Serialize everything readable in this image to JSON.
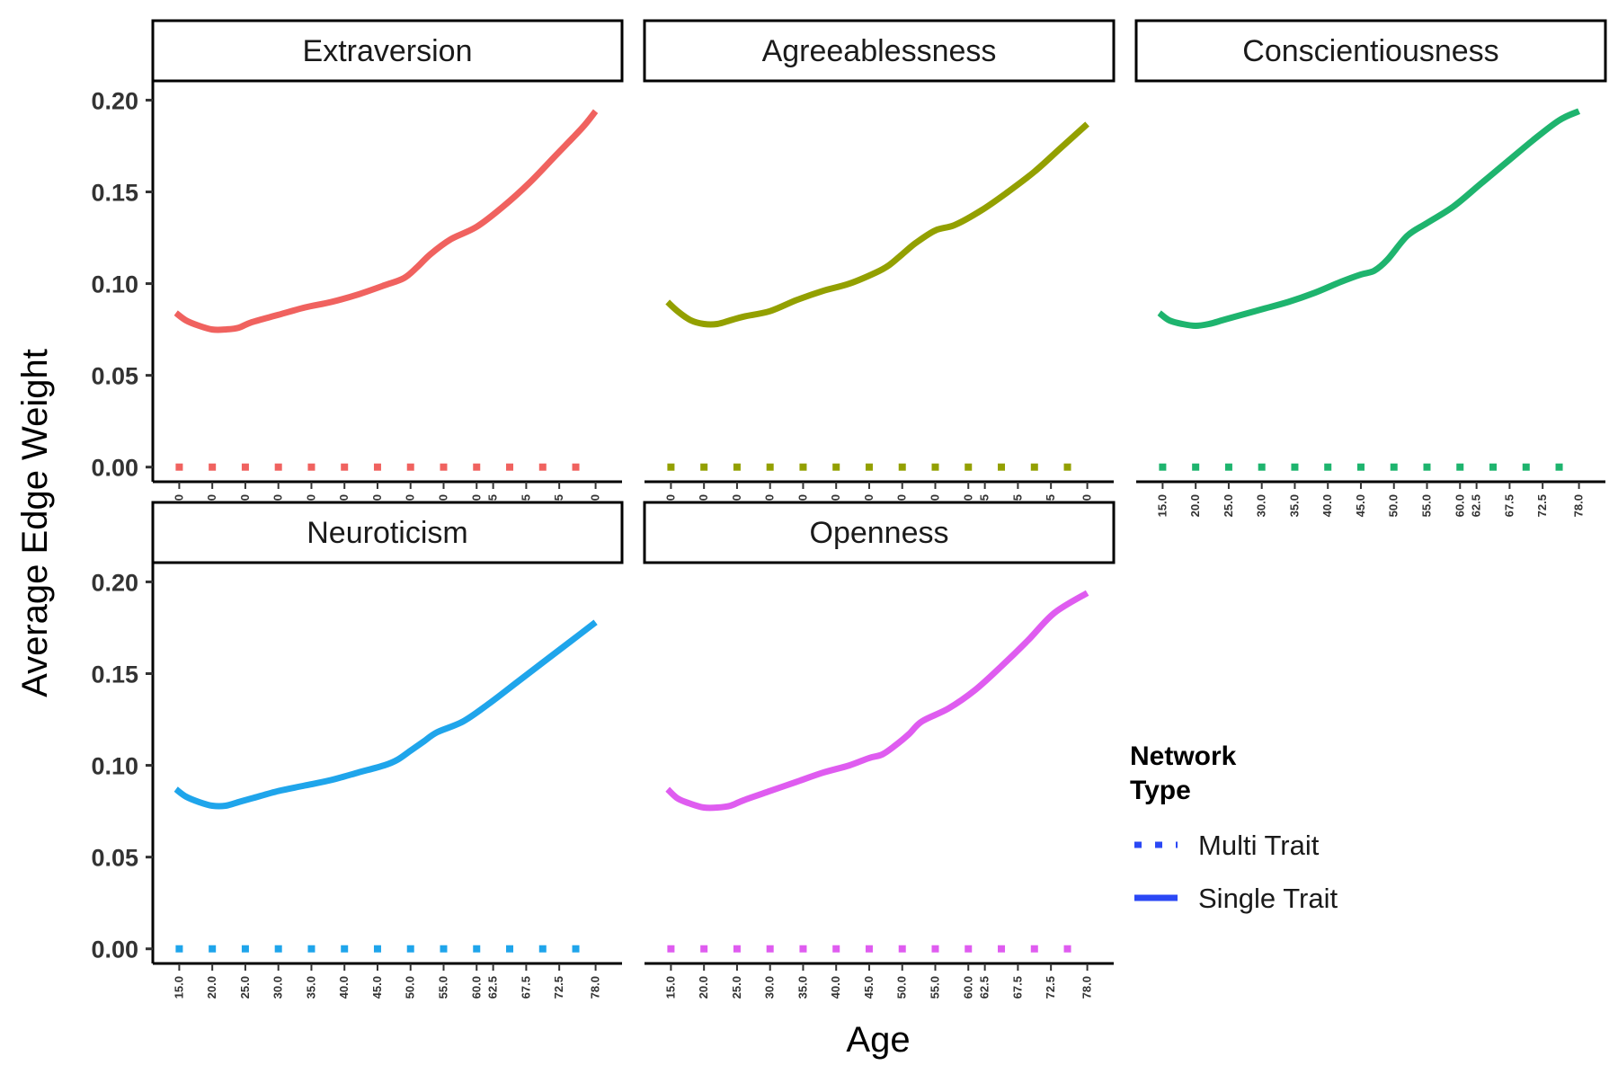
{
  "chart_data": {
    "type": "line",
    "xlabel": "Age",
    "ylabel": "Average Edge Weight",
    "ylim": [
      -0.007,
      0.21
    ],
    "y_ticks": [
      "0.00",
      "0.05",
      "0.10",
      "0.15",
      "0.20"
    ],
    "y_tick_values": [
      0,
      0.05,
      0.1,
      0.15,
      0.2
    ],
    "x_ticks": [
      "15.0",
      "20.0",
      "25.0",
      "30.0",
      "35.0",
      "40.0",
      "45.0",
      "50.0",
      "55.0",
      "60.0",
      "62.5",
      "67.5",
      "72.5",
      "78.0"
    ],
    "x_tick_values": [
      15,
      20,
      25,
      30,
      35,
      40,
      45,
      50,
      55,
      60,
      62.5,
      67.5,
      72.5,
      78
    ],
    "xlim": [
      11,
      82
    ],
    "legend": {
      "title_lines": [
        "Network",
        "Type"
      ],
      "position": "right",
      "entries": [
        {
          "label": "Multi Trait",
          "style": "dotted"
        },
        {
          "label": "Single Trait",
          "style": "solid"
        }
      ]
    },
    "facets": [
      {
        "label": "Extraversion",
        "color": "#F0625F",
        "single_trait": {
          "x": [
            14.5,
            16,
            18,
            20,
            22,
            24,
            26,
            30,
            34,
            38,
            42,
            46,
            49,
            51,
            53,
            56,
            60,
            64,
            68,
            72,
            76,
            78
          ],
          "y": [
            0.084,
            0.08,
            0.077,
            0.075,
            0.075,
            0.076,
            0.079,
            0.083,
            0.087,
            0.09,
            0.094,
            0.099,
            0.103,
            0.109,
            0.116,
            0.124,
            0.131,
            0.142,
            0.155,
            0.17,
            0.185,
            0.194
          ]
        },
        "multi_trait": {
          "x": [
            15,
            20,
            25,
            30,
            35,
            40,
            45,
            50,
            55,
            60,
            65,
            70,
            75
          ],
          "y": [
            0,
            0,
            0,
            0,
            0,
            0,
            0,
            0,
            0,
            0,
            0,
            0,
            0
          ]
        }
      },
      {
        "label": "Agreeablessness",
        "color": "#93A000",
        "single_trait": {
          "x": [
            14.5,
            16,
            18,
            20,
            22,
            24,
            26,
            30,
            34,
            38,
            42,
            46,
            48,
            50,
            52,
            55,
            58,
            62,
            66,
            70,
            74,
            78
          ],
          "y": [
            0.09,
            0.085,
            0.08,
            0.078,
            0.078,
            0.08,
            0.082,
            0.085,
            0.091,
            0.096,
            0.1,
            0.106,
            0.11,
            0.116,
            0.122,
            0.129,
            0.132,
            0.14,
            0.15,
            0.161,
            0.174,
            0.187
          ]
        },
        "multi_trait": {
          "x": [
            15,
            20,
            25,
            30,
            35,
            40,
            45,
            50,
            55,
            60,
            65,
            70,
            75
          ],
          "y": [
            0,
            0,
            0,
            0,
            0,
            0,
            0,
            0,
            0,
            0,
            0,
            0,
            0
          ]
        }
      },
      {
        "label": "Conscientiousness",
        "color": "#1EB46E",
        "single_trait": {
          "x": [
            14.5,
            16,
            18,
            20,
            22,
            24,
            26,
            30,
            34,
            38,
            42,
            45,
            47,
            49,
            52,
            55,
            59,
            63,
            67,
            71,
            75,
            78
          ],
          "y": [
            0.084,
            0.08,
            0.078,
            0.077,
            0.078,
            0.08,
            0.082,
            0.086,
            0.09,
            0.095,
            0.101,
            0.105,
            0.107,
            0.113,
            0.126,
            0.133,
            0.142,
            0.154,
            0.166,
            0.178,
            0.189,
            0.194
          ]
        },
        "multi_trait": {
          "x": [
            15,
            20,
            25,
            30,
            35,
            40,
            45,
            50,
            55,
            60,
            65,
            70,
            75
          ],
          "y": [
            0,
            0,
            0,
            0,
            0,
            0,
            0,
            0,
            0,
            0,
            0,
            0,
            0
          ]
        }
      },
      {
        "label": "Neuroticism",
        "color": "#1FA5EB",
        "single_trait": {
          "x": [
            14.5,
            16,
            18,
            20,
            22,
            24,
            26,
            30,
            34,
            38,
            42,
            46,
            48,
            50,
            52,
            54,
            58,
            62,
            66,
            70,
            74,
            78
          ],
          "y": [
            0.087,
            0.083,
            0.08,
            0.078,
            0.078,
            0.08,
            0.082,
            0.086,
            0.089,
            0.092,
            0.096,
            0.1,
            0.103,
            0.108,
            0.113,
            0.118,
            0.124,
            0.134,
            0.145,
            0.156,
            0.167,
            0.178
          ]
        },
        "multi_trait": {
          "x": [
            15,
            20,
            25,
            30,
            35,
            40,
            45,
            50,
            55,
            60,
            65,
            70,
            75
          ],
          "y": [
            0,
            0,
            0,
            0,
            0,
            0,
            0,
            0,
            0,
            0,
            0,
            0,
            0
          ]
        }
      },
      {
        "label": "Openness",
        "color": "#DF5CF0",
        "single_trait": {
          "x": [
            14.5,
            16,
            18,
            20,
            22,
            24,
            26,
            30,
            34,
            38,
            42,
            45,
            47,
            49,
            51,
            53,
            57,
            61,
            65,
            69,
            73,
            78
          ],
          "y": [
            0.087,
            0.082,
            0.079,
            0.077,
            0.077,
            0.078,
            0.081,
            0.086,
            0.091,
            0.096,
            0.1,
            0.104,
            0.106,
            0.111,
            0.117,
            0.124,
            0.131,
            0.141,
            0.154,
            0.168,
            0.183,
            0.194
          ]
        },
        "multi_trait": {
          "x": [
            15,
            20,
            25,
            30,
            35,
            40,
            45,
            50,
            55,
            60,
            65,
            70,
            75
          ],
          "y": [
            0,
            0,
            0,
            0,
            0,
            0,
            0,
            0,
            0,
            0,
            0,
            0,
            0
          ]
        }
      }
    ]
  }
}
